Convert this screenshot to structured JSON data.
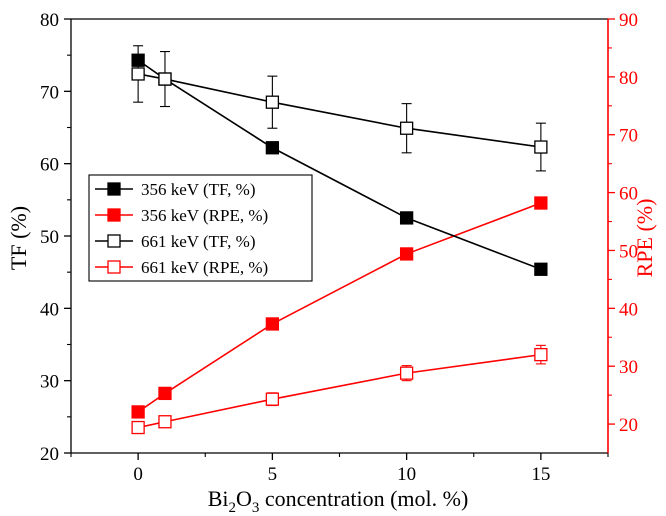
{
  "chart_data": {
    "type": "line",
    "title": "",
    "x": [
      0,
      1,
      5,
      10,
      15
    ],
    "xlabel": {
      "pre": "Bi",
      "sub1": "2",
      "mid": "O",
      "sub2": "3",
      "post": " concentration (mol. %)"
    },
    "ylabel_left": "TF (%)",
    "ylabel_right": "RPE (%)",
    "xlim": [
      -2.5,
      17.5
    ],
    "ylim_left": [
      20,
      80
    ],
    "ylim_right": [
      15,
      90
    ],
    "xticks": [
      0,
      5,
      10,
      15
    ],
    "yticks_left": [
      20,
      30,
      40,
      50,
      60,
      70,
      80
    ],
    "yticks_right": [
      20,
      30,
      40,
      50,
      60,
      70,
      80,
      90
    ],
    "grid": false,
    "legend_position": "center-left",
    "colors": {
      "left_axis": "#000000",
      "right_axis": "#ff0000"
    },
    "series": [
      {
        "name": "356 keV (TF, %)",
        "axis": "left",
        "color": "#000000",
        "marker": "filled-square",
        "values": [
          74.3,
          71.7,
          62.2,
          52.5,
          45.4
        ],
        "errors": [
          null,
          null,
          null,
          null,
          null
        ]
      },
      {
        "name": "356 keV (RPE, %)",
        "axis": "right",
        "color": "#ff0000",
        "marker": "filled-square",
        "values": [
          22.1,
          25.3,
          37.3,
          49.4,
          58.2
        ],
        "errors": [
          null,
          null,
          null,
          null,
          null
        ]
      },
      {
        "name": "661 keV (TF, %)",
        "axis": "left",
        "color": "#000000",
        "marker": "open-square",
        "values": [
          72.4,
          71.7,
          68.5,
          64.9,
          62.3
        ],
        "errors": [
          3.9,
          3.8,
          3.6,
          3.4,
          3.3
        ]
      },
      {
        "name": "661 keV (RPE, %)",
        "axis": "right",
        "color": "#ff0000",
        "marker": "open-square",
        "values": [
          19.4,
          20.4,
          24.3,
          28.8,
          32.0
        ],
        "errors": [
          0.8,
          0.9,
          1.1,
          1.3,
          1.6
        ]
      }
    ]
  }
}
